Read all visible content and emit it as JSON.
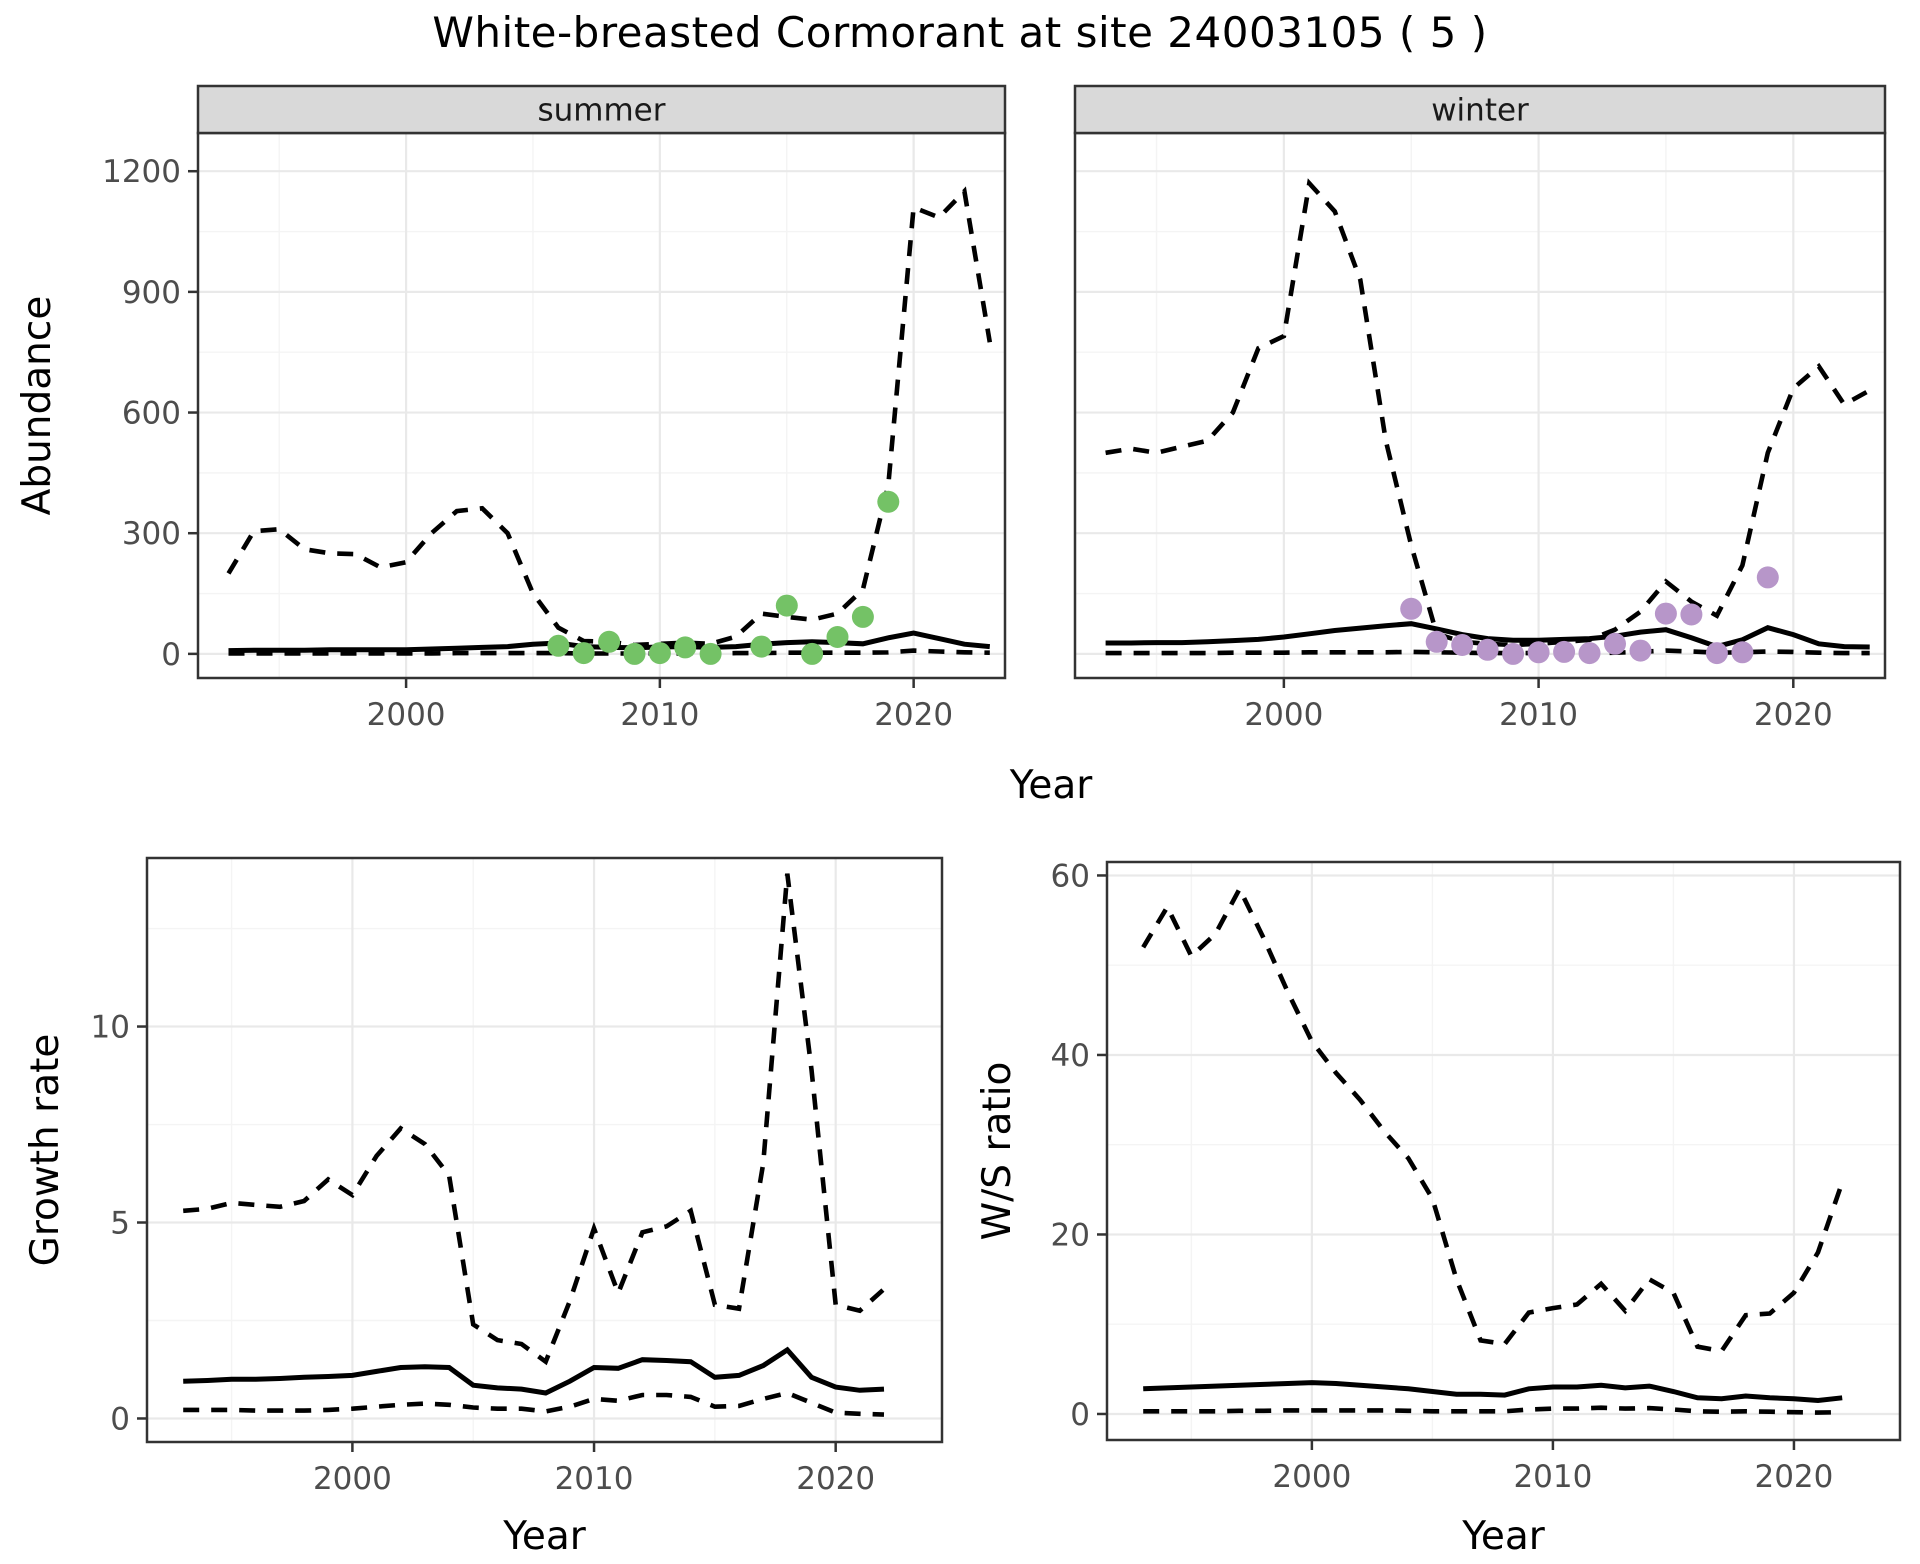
{
  "title": "White-breasted Cormorant at site 24003105 ( 5 )",
  "colors": {
    "summer_point": "#74c266",
    "winter_point": "#b796c9",
    "line": "#000000",
    "grid_major": "#e9e9e9",
    "grid_minor": "#f4f4f4",
    "strip_bg": "#d9d9d9",
    "panel_border": "#333333",
    "tick_text": "#4d4d4d",
    "axis_title": "#000000"
  },
  "chart_data": [
    {
      "id": "abundance_summer",
      "type": "line",
      "facet_label": "summer",
      "xlabel": "Year",
      "ylabel": "Abundance",
      "xlim": [
        1991.8,
        2023.6
      ],
      "ylim": [
        -60,
        1295
      ],
      "xticks": [
        2000,
        2010,
        2020
      ],
      "yticks": [
        0,
        300,
        600,
        900,
        1200
      ],
      "grid": true,
      "legend": "none",
      "x": [
        1993,
        1994,
        1995,
        1996,
        1997,
        1998,
        1999,
        2000,
        2001,
        2002,
        2003,
        2004,
        2005,
        2006,
        2007,
        2008,
        2009,
        2010,
        2011,
        2012,
        2013,
        2014,
        2015,
        2016,
        2017,
        2018,
        2019,
        2020,
        2021,
        2022,
        2023
      ],
      "series": [
        {
          "name": "ci_upper",
          "style": "dashed",
          "values": [
            200,
            305,
            310,
            260,
            250,
            248,
            215,
            228,
            300,
            355,
            362,
            300,
            150,
            65,
            32,
            30,
            22,
            25,
            28,
            25,
            43,
            100,
            92,
            85,
            100,
            160,
            420,
            1110,
            1085,
            1150,
            775
          ]
        },
        {
          "name": "median",
          "style": "solid",
          "values": [
            8,
            9,
            9,
            9,
            10,
            10,
            10,
            10,
            12,
            14,
            16,
            18,
            24,
            27,
            18,
            16,
            15,
            17,
            18,
            16,
            18,
            24,
            28,
            30,
            28,
            25,
            40,
            52,
            38,
            24,
            18
          ]
        },
        {
          "name": "ci_lower",
          "style": "dashed",
          "values": [
            1,
            1,
            1,
            1,
            1,
            1,
            1,
            1,
            1,
            2,
            2,
            2,
            2,
            2,
            1,
            1,
            1,
            1,
            1,
            1,
            2,
            2,
            3,
            3,
            3,
            3,
            4,
            8,
            6,
            4,
            3
          ]
        }
      ],
      "points": {
        "name": "observed_counts_summer",
        "color": "#74c266",
        "x": [
          2006,
          2007,
          2008,
          2009,
          2010,
          2011,
          2012,
          2014,
          2015,
          2016,
          2017,
          2018,
          2019
        ],
        "y": [
          20,
          2,
          30,
          0,
          2,
          16,
          0,
          18,
          120,
          0,
          42,
          92,
          378
        ]
      }
    },
    {
      "id": "abundance_winter",
      "type": "line",
      "facet_label": "winter",
      "xlabel": "",
      "ylabel": "",
      "xlim": [
        1991.8,
        2023.6
      ],
      "ylim": [
        -60,
        1295
      ],
      "xticks": [
        2000,
        2010,
        2020
      ],
      "yticks": [
        0,
        300,
        600,
        900,
        1200
      ],
      "grid": true,
      "legend": "none",
      "x": [
        1993,
        1994,
        1995,
        1996,
        1997,
        1998,
        1999,
        2000,
        2001,
        2002,
        2003,
        2004,
        2005,
        2006,
        2007,
        2008,
        2009,
        2010,
        2011,
        2012,
        2013,
        2014,
        2015,
        2016,
        2017,
        2018,
        2019,
        2020,
        2021,
        2022,
        2023
      ],
      "series": [
        {
          "name": "ci_upper",
          "style": "dashed",
          "values": [
            500,
            510,
            500,
            515,
            530,
            600,
            760,
            790,
            1170,
            1100,
            930,
            530,
            270,
            50,
            30,
            25,
            22,
            25,
            30,
            35,
            60,
            105,
            180,
            130,
            95,
            220,
            500,
            660,
            715,
            620,
            655
          ]
        },
        {
          "name": "median",
          "style": "solid",
          "values": [
            27,
            27,
            28,
            28,
            30,
            33,
            36,
            42,
            50,
            58,
            64,
            70,
            75,
            62,
            48,
            38,
            34,
            34,
            36,
            38,
            44,
            54,
            60,
            40,
            18,
            35,
            65,
            48,
            25,
            18,
            17
          ]
        },
        {
          "name": "ci_lower",
          "style": "dashed",
          "values": [
            2,
            2,
            2,
            2,
            2,
            3,
            3,
            3,
            4,
            4,
            4,
            4,
            5,
            4,
            3,
            2,
            2,
            2,
            2,
            2,
            3,
            5,
            8,
            6,
            3,
            4,
            6,
            5,
            3,
            2,
            2
          ]
        }
      ],
      "points": {
        "name": "observed_counts_winter",
        "color": "#b796c9",
        "x": [
          2005,
          2006,
          2007,
          2008,
          2009,
          2010,
          2011,
          2012,
          2013,
          2014,
          2015,
          2016,
          2017,
          2018,
          2019
        ],
        "y": [
          112,
          30,
          22,
          10,
          0,
          4,
          5,
          2,
          25,
          8,
          100,
          98,
          2,
          4,
          190
        ]
      }
    },
    {
      "id": "growth_rate",
      "type": "line",
      "facet_label": "",
      "xlabel": "Year",
      "ylabel": "Growth rate",
      "xlim": [
        1991.5,
        2024.4
      ],
      "ylim": [
        -0.6,
        14.3
      ],
      "xticks": [
        2000,
        2010,
        2020
      ],
      "yticks": [
        0,
        5,
        10
      ],
      "grid": true,
      "legend": "none",
      "x": [
        1993,
        1994,
        1995,
        1996,
        1997,
        1998,
        1999,
        2000,
        2001,
        2002,
        2003,
        2004,
        2005,
        2006,
        2007,
        2008,
        2009,
        2010,
        2011,
        2012,
        2013,
        2014,
        2015,
        2016,
        2017,
        2018,
        2019,
        2020,
        2021,
        2022
      ],
      "series": [
        {
          "name": "ci_upper",
          "style": "dashed",
          "values": [
            5.3,
            5.35,
            5.5,
            5.45,
            5.4,
            5.55,
            6.1,
            5.7,
            6.7,
            7.4,
            7.0,
            6.2,
            2.4,
            2.0,
            1.9,
            1.45,
            3.0,
            4.85,
            3.2,
            4.75,
            4.9,
            5.3,
            2.9,
            2.8,
            6.5,
            13.9,
            8.9,
            2.9,
            2.75,
            3.3
          ]
        },
        {
          "name": "median",
          "style": "solid",
          "values": [
            0.95,
            0.97,
            1.0,
            1.0,
            1.02,
            1.05,
            1.07,
            1.1,
            1.2,
            1.3,
            1.32,
            1.3,
            0.85,
            0.78,
            0.75,
            0.65,
            0.95,
            1.3,
            1.28,
            1.5,
            1.48,
            1.45,
            1.05,
            1.1,
            1.35,
            1.75,
            1.05,
            0.8,
            0.72,
            0.75
          ]
        },
        {
          "name": "ci_lower",
          "style": "dashed",
          "values": [
            0.22,
            0.22,
            0.22,
            0.2,
            0.2,
            0.2,
            0.22,
            0.25,
            0.3,
            0.35,
            0.38,
            0.35,
            0.28,
            0.25,
            0.25,
            0.18,
            0.3,
            0.5,
            0.45,
            0.6,
            0.6,
            0.55,
            0.3,
            0.32,
            0.5,
            0.65,
            0.4,
            0.15,
            0.12,
            0.1
          ]
        }
      ]
    },
    {
      "id": "ws_ratio",
      "type": "line",
      "facet_label": "",
      "xlabel": "Year",
      "ylabel": "W/S ratio",
      "xlim": [
        1991.5,
        2024.4
      ],
      "ylim": [
        -2.9,
        61.5
      ],
      "xticks": [
        2000,
        2010,
        2020
      ],
      "yticks": [
        0,
        20,
        40,
        60
      ],
      "grid": true,
      "legend": "none",
      "x": [
        1993,
        1994,
        1995,
        1996,
        1997,
        1998,
        1999,
        2000,
        2001,
        2002,
        2003,
        2004,
        2005,
        2006,
        2007,
        2008,
        2009,
        2010,
        2011,
        2012,
        2013,
        2014,
        2015,
        2016,
        2017,
        2018,
        2019,
        2020,
        2021,
        2022
      ],
      "series": [
        {
          "name": "ci_upper",
          "style": "dashed",
          "values": [
            52,
            56.5,
            51,
            53.5,
            58.5,
            53,
            47,
            41.5,
            38,
            35,
            31.5,
            28.5,
            24,
            15,
            8.2,
            7.8,
            11.3,
            11.8,
            12.2,
            14.5,
            11.5,
            15,
            13.5,
            7.5,
            7,
            11,
            11.2,
            13.5,
            18,
            25.8
          ]
        },
        {
          "name": "median",
          "style": "solid",
          "values": [
            2.8,
            2.9,
            3.0,
            3.1,
            3.2,
            3.3,
            3.4,
            3.5,
            3.4,
            3.2,
            3.0,
            2.8,
            2.5,
            2.2,
            2.2,
            2.1,
            2.8,
            3.0,
            3.0,
            3.2,
            2.9,
            3.1,
            2.5,
            1.8,
            1.7,
            2.0,
            1.8,
            1.7,
            1.5,
            1.8
          ]
        },
        {
          "name": "ci_lower",
          "style": "dashed",
          "values": [
            0.3,
            0.3,
            0.3,
            0.3,
            0.35,
            0.35,
            0.4,
            0.4,
            0.4,
            0.4,
            0.4,
            0.35,
            0.3,
            0.3,
            0.3,
            0.3,
            0.5,
            0.6,
            0.6,
            0.7,
            0.6,
            0.65,
            0.5,
            0.3,
            0.25,
            0.3,
            0.25,
            0.2,
            0.15,
            0.2
          ]
        }
      ]
    }
  ]
}
